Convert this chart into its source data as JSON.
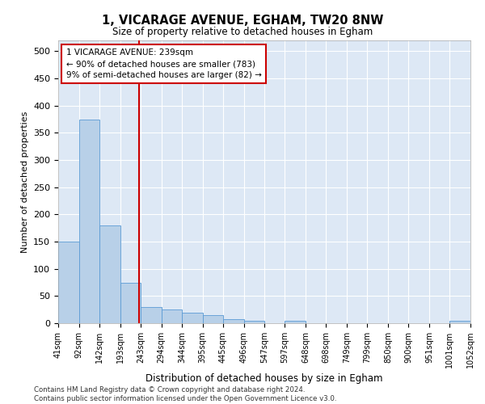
{
  "title": "1, VICARAGE AVENUE, EGHAM, TW20 8NW",
  "subtitle": "Size of property relative to detached houses in Egham",
  "xlabel": "Distribution of detached houses by size in Egham",
  "ylabel": "Number of detached properties",
  "footer_line1": "Contains HM Land Registry data © Crown copyright and database right 2024.",
  "footer_line2": "Contains public sector information licensed under the Open Government Licence v3.0.",
  "bar_edges": [
    41,
    92,
    142,
    193,
    243,
    294,
    344,
    395,
    445,
    496,
    547,
    597,
    648,
    698,
    749,
    799,
    850,
    900,
    951,
    1001,
    1052
  ],
  "bar_heights": [
    150,
    375,
    180,
    75,
    30,
    25,
    20,
    15,
    7,
    5,
    0,
    5,
    0,
    0,
    0,
    0,
    0,
    0,
    0,
    5
  ],
  "bar_color": "#b8d0e8",
  "bar_edge_color": "#5b9bd5",
  "vline_x": 239,
  "vline_color": "#cc0000",
  "annotation_line1": "1 VICARAGE AVENUE: 239sqm",
  "annotation_line2": "← 90% of detached houses are smaller (783)",
  "annotation_line3": "9% of semi-detached houses are larger (82) →",
  "annotation_box_color": "#cc0000",
  "ylim": [
    0,
    520
  ],
  "yticks": [
    0,
    50,
    100,
    150,
    200,
    250,
    300,
    350,
    400,
    450,
    500
  ],
  "background_color": "#ffffff",
  "plot_bg_color": "#dde8f5",
  "grid_color": "#ffffff"
}
